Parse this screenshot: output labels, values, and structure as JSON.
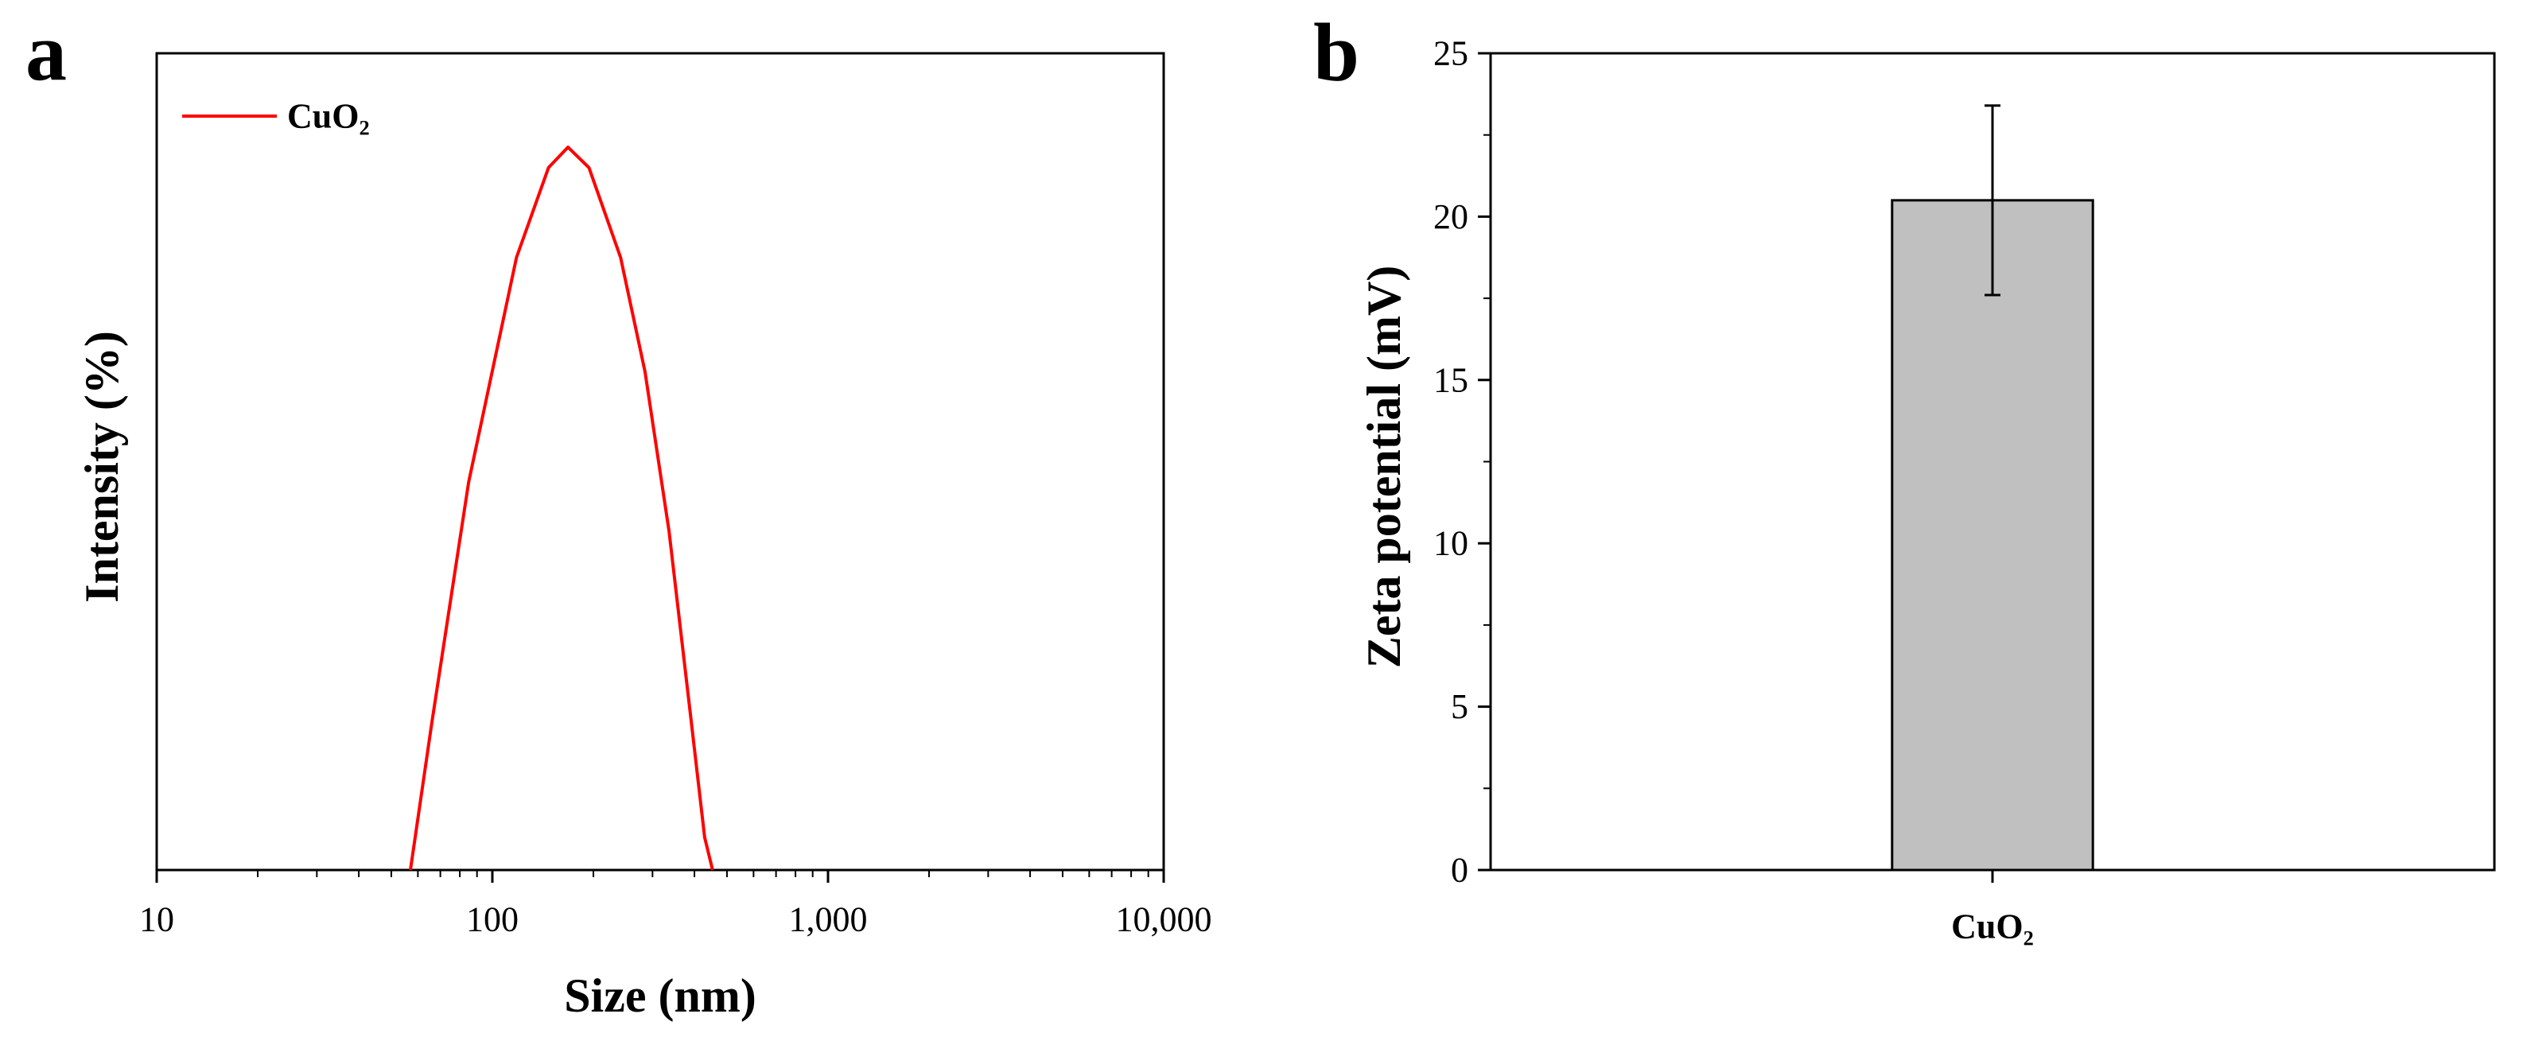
{
  "chart_data": [
    {
      "type": "line",
      "panel_label": "a",
      "xlabel": "Size (nm)",
      "ylabel": "Intensity (%)",
      "xscale": "log",
      "xlim": [
        10,
        10000
      ],
      "xticks": [
        10,
        100,
        {
          "value": 1000,
          "label": "1,000"
        },
        {
          "value": 10000,
          "label": "10,000"
        }
      ],
      "ylim": [
        0,
        20
      ],
      "minor_ticks": true,
      "legend": "upper left",
      "series": [
        {
          "name": "CuO₂",
          "color": "#ff0000",
          "x": [
            57,
            66,
            85,
            118,
            147,
            168,
            194,
            241,
            285,
            336,
            388,
            429,
            453
          ],
          "values": [
            0,
            3.6,
            9.5,
            15,
            17.2,
            17.7,
            17.2,
            15,
            12.2,
            8.3,
            3.9,
            0.8,
            0
          ]
        }
      ]
    },
    {
      "type": "bar",
      "panel_label": "b",
      "ylabel": "Zeta potential (mV)",
      "categories": [
        "CuO₂"
      ],
      "values": [
        20.5
      ],
      "errors": [
        2.9
      ],
      "color": "#c0c0c0",
      "ylim": [
        0,
        25
      ],
      "yticks": [
        0,
        5,
        10,
        15,
        20,
        25
      ],
      "minor_ticks": true
    }
  ]
}
